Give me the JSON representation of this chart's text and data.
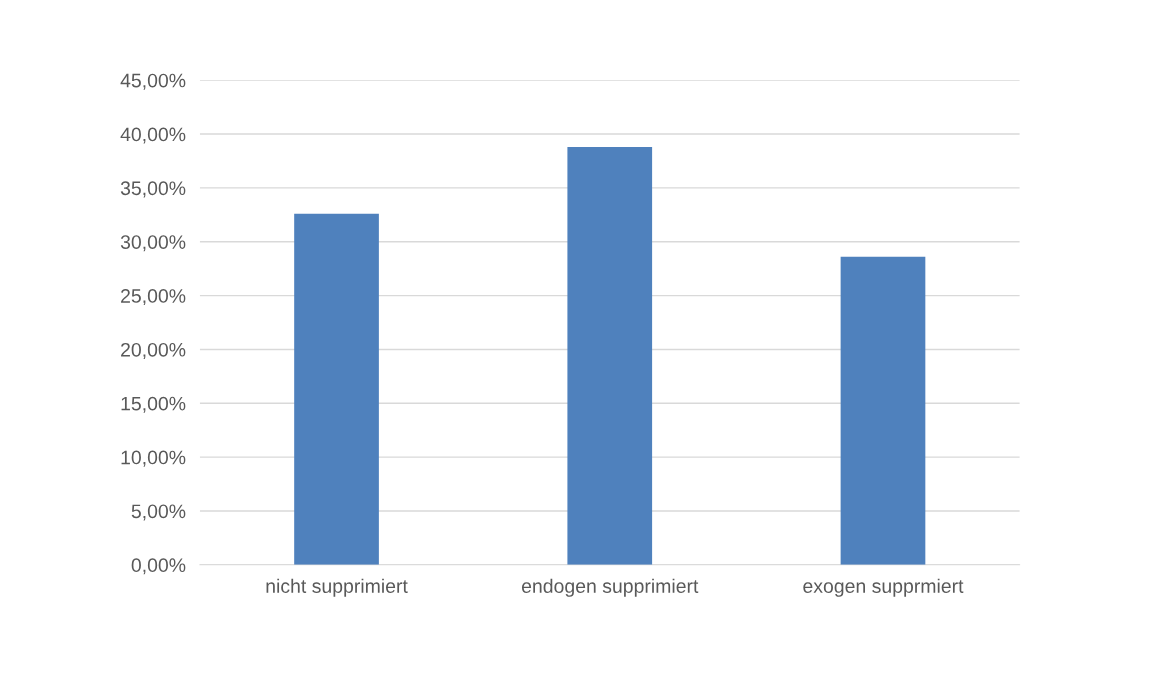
{
  "chart_data": {
    "type": "bar",
    "categories": [
      "nicht supprimiert",
      "endogen supprimiert",
      "exogen supprmiert"
    ],
    "values": [
      32.6,
      38.8,
      28.6
    ],
    "color": "#4f81bd",
    "ylim": [
      0,
      45
    ],
    "yticks": [
      {
        "value": 0,
        "label": "0,00%"
      },
      {
        "value": 5,
        "label": "5,00%"
      },
      {
        "value": 10,
        "label": "10,00%"
      },
      {
        "value": 15,
        "label": "15,00%"
      },
      {
        "value": 20,
        "label": "20,00%"
      },
      {
        "value": 25,
        "label": "25,00%"
      },
      {
        "value": 30,
        "label": "30,00%"
      },
      {
        "value": 35,
        "label": "35,00%"
      },
      {
        "value": 40,
        "label": "40,00%"
      },
      {
        "value": 45,
        "label": "45,00%"
      }
    ],
    "grid": "y",
    "legend": false
  }
}
